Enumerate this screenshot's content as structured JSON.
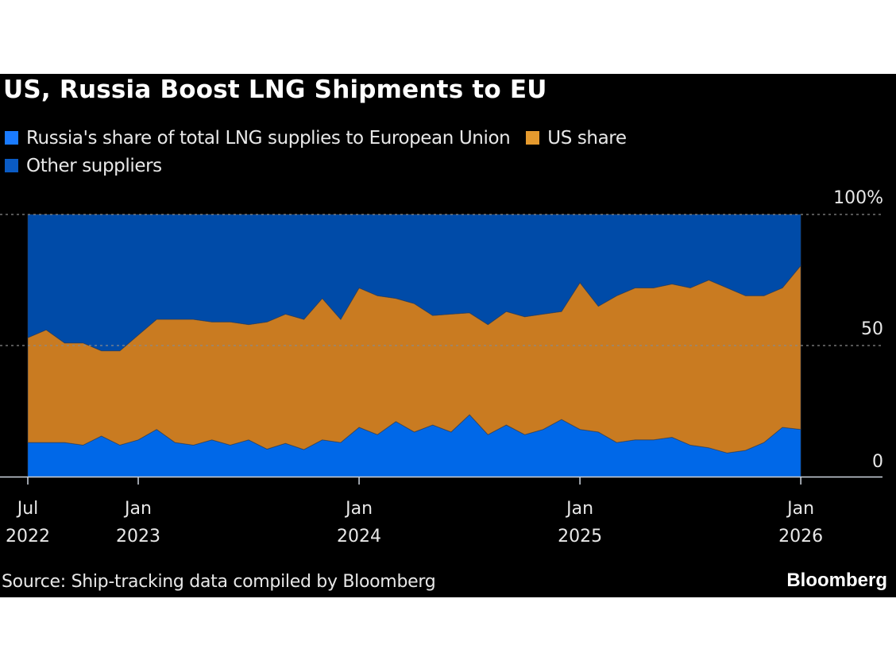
{
  "chart_data": {
    "type": "area",
    "stacked": true,
    "title": "US, Russia Boost LNG Shipments to EU",
    "xlabel": "",
    "ylabel": "",
    "ylim": [
      0,
      100
    ],
    "y_ticks": [
      "0",
      "50",
      "100%"
    ],
    "y_tick_values": [
      0,
      50,
      100
    ],
    "gridlines": [
      50,
      100
    ],
    "legend_position": "top-left",
    "x_ticks": [
      {
        "index": 0,
        "line1": "Jul",
        "line2": "2022"
      },
      {
        "index": 6,
        "line1": "Jan",
        "line2": "2023"
      },
      {
        "index": 18,
        "line1": "Jan",
        "line2": "2024"
      },
      {
        "index": 30,
        "line1": "Jan",
        "line2": "2025"
      },
      {
        "index": 42,
        "line1": "Jan",
        "line2": "2026"
      }
    ],
    "x": [
      "2022-07",
      "2022-08",
      "2022-09",
      "2022-10",
      "2022-11",
      "2022-12",
      "2023-01",
      "2023-02",
      "2023-03",
      "2023-04",
      "2023-05",
      "2023-06",
      "2023-07",
      "2023-08",
      "2023-09",
      "2023-10",
      "2023-11",
      "2023-12",
      "2024-01",
      "2024-02",
      "2024-03",
      "2024-04",
      "2024-05",
      "2024-06",
      "2024-07",
      "2024-08",
      "2024-09",
      "2024-10",
      "2024-11",
      "2024-12",
      "2025-01",
      "2025-02",
      "2025-03",
      "2025-04",
      "2025-05",
      "2025-06",
      "2025-07",
      "2025-08",
      "2025-09",
      "2025-10",
      "2025-11",
      "2025-12",
      "2026-01"
    ],
    "series": [
      {
        "name": "Russia's share of total LNG supplies to European Union",
        "color": "#0068E8",
        "values": [
          13,
          13,
          13,
          12,
          15.5,
          12,
          14,
          18,
          13,
          12,
          14,
          12,
          14,
          10.5,
          12.7,
          10.3,
          14,
          13,
          18.8,
          16,
          21,
          17,
          19.7,
          17,
          23.6,
          16,
          19.7,
          16,
          18,
          21.8,
          18,
          17,
          13,
          14,
          14,
          15,
          12,
          11,
          9,
          10,
          13,
          18.8,
          18
        ]
      },
      {
        "name": "US share",
        "color": "#C97B21",
        "values": [
          40,
          43,
          38,
          39,
          32.5,
          36,
          40,
          42,
          47,
          48,
          45,
          47,
          44,
          48.5,
          49.3,
          49.7,
          54,
          47,
          53.2,
          53,
          47,
          49,
          41.8,
          45,
          38.9,
          42,
          43.3,
          45,
          44,
          41.2,
          56,
          48,
          56,
          58,
          58,
          58.5,
          60,
          64,
          63,
          59,
          56,
          53.2,
          62.5
        ]
      },
      {
        "name": "Other suppliers",
        "color": "#004BA8",
        "values": [
          47,
          44,
          49,
          49,
          52,
          52,
          46,
          40,
          40,
          40,
          41,
          41,
          42,
          41,
          38,
          40,
          32,
          40,
          28,
          31,
          32,
          34,
          38.5,
          38,
          37.5,
          42,
          37,
          39,
          38,
          37,
          26,
          35,
          31,
          28,
          28,
          26.5,
          28,
          25,
          28,
          31,
          31,
          28,
          19.5
        ]
      }
    ]
  },
  "legend": {
    "items": [
      {
        "label": "Russia's share of total LNG supplies to European Union",
        "color": "#1a7bff"
      },
      {
        "label": "US share",
        "color": "#E59A2E"
      },
      {
        "label": "Other suppliers",
        "color": "#0A5BC4"
      }
    ]
  },
  "footer": {
    "source": "Source: Ship-tracking data compiled by Bloomberg",
    "brand": "Bloomberg"
  }
}
